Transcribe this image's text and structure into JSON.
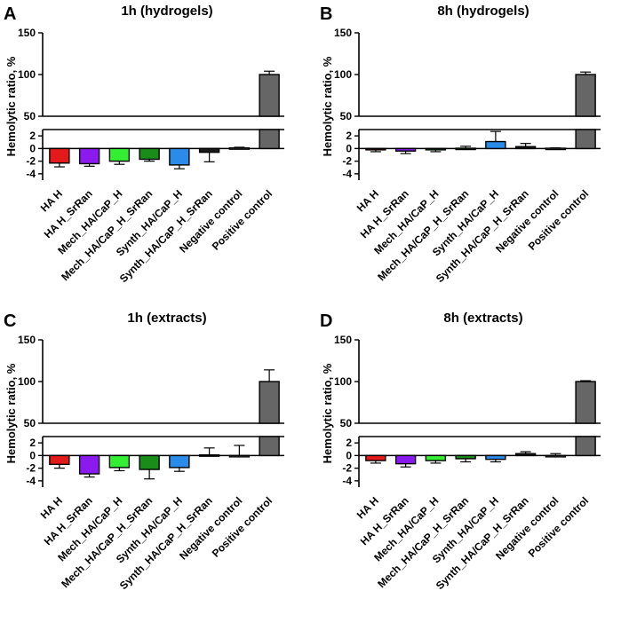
{
  "chart_data": [
    {
      "type": "bar",
      "panel": "A",
      "title": "1h (hydrogels)",
      "ylabel": "Hemolytic ratio, %",
      "xlabel": "",
      "axis_break": {
        "lower_range": [
          -5,
          3
        ],
        "upper_range": [
          50,
          150
        ]
      },
      "lower_ticks": [
        -4,
        -2,
        0,
        2
      ],
      "upper_ticks": [
        50,
        100,
        150
      ],
      "categories": [
        "HA H",
        "HA H_SrRan",
        "Mech_HA/CaP_H",
        "Mech_HA/CaP_H_SrRan",
        "Synth_HA/CaP_H",
        "Synth_HA/CaP_H_SrRan",
        "Negative control",
        "Positive control"
      ],
      "values": [
        -2.3,
        -2.4,
        -2.0,
        -1.7,
        -2.6,
        -0.6,
        0.1,
        100
      ],
      "errors": [
        0.6,
        0.4,
        0.5,
        0.3,
        0.6,
        1.5,
        0.1,
        4
      ]
    },
    {
      "type": "bar",
      "panel": "B",
      "title": "8h (hydrogels)",
      "ylabel": "Hemolytic ratio, %",
      "xlabel": "",
      "axis_break": {
        "lower_range": [
          -5,
          3
        ],
        "upper_range": [
          50,
          150
        ]
      },
      "lower_ticks": [
        -4,
        -2,
        0,
        2
      ],
      "upper_ticks": [
        50,
        100,
        150
      ],
      "categories": [
        "HA H",
        "HA H_SrRan",
        "Mech_HA/CaP_H",
        "Mech_HA/CaP_H_SrRan",
        "Synth_HA/CaP_H",
        "Synth_HA/CaP_H_SrRan",
        "Negative control",
        "Positive control"
      ],
      "values": [
        -0.2,
        -0.4,
        -0.2,
        0.05,
        1.1,
        0.3,
        0.05,
        100
      ],
      "errors": [
        0.3,
        0.4,
        0.3,
        0.3,
        1.6,
        0.5,
        0.05,
        3
      ]
    },
    {
      "type": "bar",
      "panel": "C",
      "title": "1h (extracts)",
      "ylabel": "Hemolytic ratio, %",
      "xlabel": "",
      "axis_break": {
        "lower_range": [
          -5,
          3
        ],
        "upper_range": [
          50,
          150
        ]
      },
      "lower_ticks": [
        -4,
        -2,
        0,
        2
      ],
      "upper_ticks": [
        50,
        100,
        150
      ],
      "categories": [
        "HA H",
        "HA H_SrRan",
        "Mech_HA/CaP_H",
        "Mech_HA/CaP_H_SrRan",
        "Synth_HA/CaP_H",
        "Synth_HA/CaP_H_SrRan",
        "Negative control",
        "Positive control"
      ],
      "values": [
        -1.4,
        -2.9,
        -1.9,
        -2.2,
        -1.9,
        0.1,
        0.0,
        100
      ],
      "errors": [
        0.6,
        0.5,
        0.5,
        1.5,
        0.6,
        1.1,
        1.6,
        14
      ]
    },
    {
      "type": "bar",
      "panel": "D",
      "title": "8h (extracts)",
      "ylabel": "Hemolytic ratio, %",
      "xlabel": "",
      "axis_break": {
        "lower_range": [
          -5,
          3
        ],
        "upper_range": [
          50,
          150
        ]
      },
      "lower_ticks": [
        -4,
        -2,
        0,
        2
      ],
      "upper_ticks": [
        50,
        100,
        150
      ],
      "categories": [
        "HA H",
        "HA H_SrRan",
        "Mech_HA/CaP_H",
        "Mech_HA/CaP_H_SrRan",
        "Synth_HA/CaP_H",
        "Synth_HA/CaP_H_SrRan",
        "Negative control",
        "Positive control"
      ],
      "values": [
        -0.8,
        -1.3,
        -0.8,
        -0.5,
        -0.6,
        0.3,
        0.0,
        100
      ],
      "errors": [
        0.4,
        0.5,
        0.4,
        0.5,
        0.4,
        0.3,
        0.3,
        1
      ]
    }
  ],
  "bar_colors": [
    "#e41a1a",
    "#8b1aee",
    "#33ee33",
    "#1a8c1a",
    "#2b8be8",
    "#1a1a1a",
    "#ffffff",
    "#666666"
  ]
}
